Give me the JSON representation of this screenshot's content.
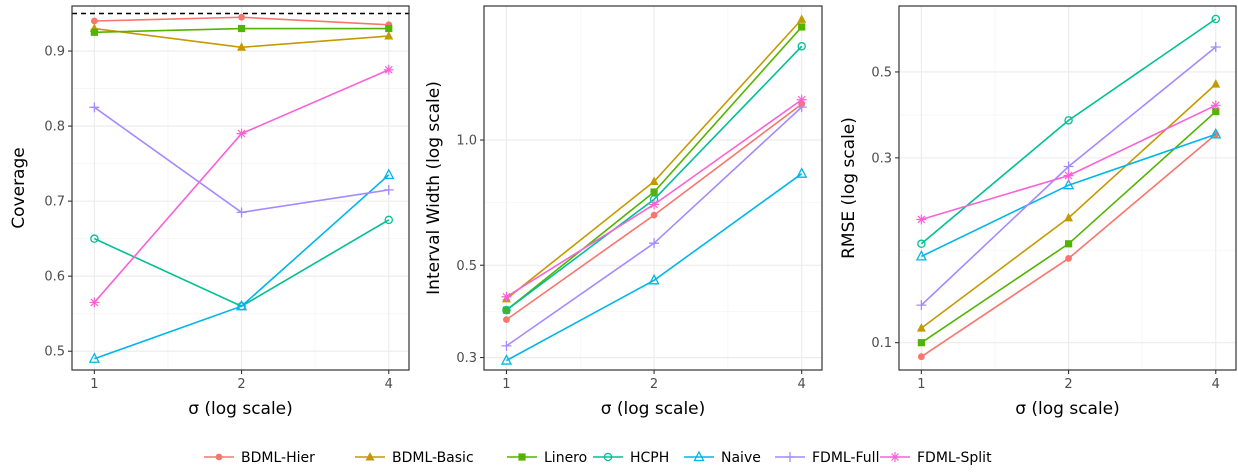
{
  "colors": {
    "BDML-Hier": "#F8766D",
    "BDML-Basic": "#C49A00",
    "Linero": "#53B400",
    "HCPH": "#00C094",
    "Naive": "#00B6EB",
    "FDML-Full": "#A58AFF",
    "FDML-Split": "#FB61D7",
    "reference_line": "#000000",
    "panel_background": "#FFFFFF",
    "grid_major": "#EBEBEB",
    "grid_minor": "#F5F5F5",
    "panel_border": "#333333"
  },
  "markers": {
    "BDML-Hier": "filled-circle",
    "BDML-Basic": "filled-triangle",
    "Linero": "filled-square",
    "HCPH": "open-circle",
    "Naive": "open-triangle",
    "FDML-Full": "plus",
    "FDML-Split": "asterisk"
  },
  "legend": {
    "position": "bottom",
    "items": [
      "BDML-Hier",
      "BDML-Basic",
      "Linero",
      "HCPH",
      "Naive",
      "FDML-Full",
      "FDML-Split"
    ]
  },
  "chart_data": [
    {
      "type": "line",
      "panel": "coverage",
      "xlabel": "σ (log scale)",
      "ylabel": "Coverage",
      "x_scale": "log",
      "y_scale": "linear",
      "x": [
        1,
        2,
        4
      ],
      "x_ticks": [
        "1",
        "2",
        "4"
      ],
      "xlim": [
        0.9,
        4.4
      ],
      "ylim": [
        0.475,
        0.96
      ],
      "y_ticks": [
        0.5,
        0.6,
        0.7,
        0.8,
        0.9
      ],
      "y_tick_labels": [
        "0.5",
        "0.6",
        "0.7",
        "0.8",
        "0.9"
      ],
      "reference_line": {
        "y": 0.95,
        "style": "dashed"
      },
      "grid": true,
      "series": [
        {
          "name": "BDML-Hier",
          "values": [
            0.94,
            0.945,
            0.935
          ]
        },
        {
          "name": "BDML-Basic",
          "values": [
            0.93,
            0.905,
            0.92
          ]
        },
        {
          "name": "Linero",
          "values": [
            0.925,
            0.93,
            0.93
          ]
        },
        {
          "name": "HCPH",
          "values": [
            0.65,
            0.56,
            0.675
          ]
        },
        {
          "name": "Naive",
          "values": [
            0.49,
            0.56,
            0.735
          ]
        },
        {
          "name": "FDML-Full",
          "values": [
            0.825,
            0.685,
            0.715
          ]
        },
        {
          "name": "FDML-Split",
          "values": [
            0.565,
            0.79,
            0.875
          ]
        }
      ]
    },
    {
      "type": "line",
      "panel": "interval_width",
      "xlabel": "σ (log scale)",
      "ylabel": "Interval Width (log scale)",
      "x_scale": "log",
      "y_scale": "log",
      "x": [
        1,
        2,
        4
      ],
      "x_ticks": [
        "1",
        "2",
        "4"
      ],
      "xlim": [
        0.9,
        4.4
      ],
      "ylim": [
        0.28,
        2.1
      ],
      "y_ticks": [
        0.3,
        0.5,
        1.0
      ],
      "y_tick_labels": [
        "0.3",
        "0.5",
        "1.0"
      ],
      "grid": true,
      "series": [
        {
          "name": "BDML-Hier",
          "values": [
            0.37,
            0.66,
            1.22
          ]
        },
        {
          "name": "BDML-Basic",
          "values": [
            0.415,
            0.795,
            1.95
          ]
        },
        {
          "name": "Linero",
          "values": [
            0.39,
            0.75,
            1.87
          ]
        },
        {
          "name": "HCPH",
          "values": [
            0.39,
            0.72,
            1.68
          ]
        },
        {
          "name": "Naive",
          "values": [
            0.295,
            0.46,
            0.83
          ]
        },
        {
          "name": "FDML-Full",
          "values": [
            0.32,
            0.565,
            1.2
          ]
        },
        {
          "name": "FDML-Split",
          "values": [
            0.42,
            0.7,
            1.25
          ]
        }
      ]
    },
    {
      "type": "line",
      "panel": "rmse",
      "xlabel": "σ (log scale)",
      "ylabel": "RMSE (log scale)",
      "x_scale": "log",
      "y_scale": "log",
      "x": [
        1,
        2,
        4
      ],
      "x_ticks": [
        "1",
        "2",
        "4"
      ],
      "xlim": [
        0.9,
        4.4
      ],
      "ylim": [
        0.085,
        0.74
      ],
      "y_ticks": [
        0.1,
        0.3,
        0.5
      ],
      "y_tick_labels": [
        "0.1",
        "0.3",
        "0.5"
      ],
      "grid": true,
      "series": [
        {
          "name": "BDML-Hier",
          "values": [
            0.092,
            0.165,
            0.345
          ]
        },
        {
          "name": "BDML-Basic",
          "values": [
            0.109,
            0.21,
            0.465
          ]
        },
        {
          "name": "Linero",
          "values": [
            0.1,
            0.18,
            0.395
          ]
        },
        {
          "name": "HCPH",
          "values": [
            0.18,
            0.375,
            0.685
          ]
        },
        {
          "name": "Naive",
          "values": [
            0.167,
            0.255,
            0.345
          ]
        },
        {
          "name": "FDML-Full",
          "values": [
            0.125,
            0.285,
            0.58
          ]
        },
        {
          "name": "FDML-Split",
          "values": [
            0.208,
            0.27,
            0.41
          ]
        }
      ]
    }
  ]
}
